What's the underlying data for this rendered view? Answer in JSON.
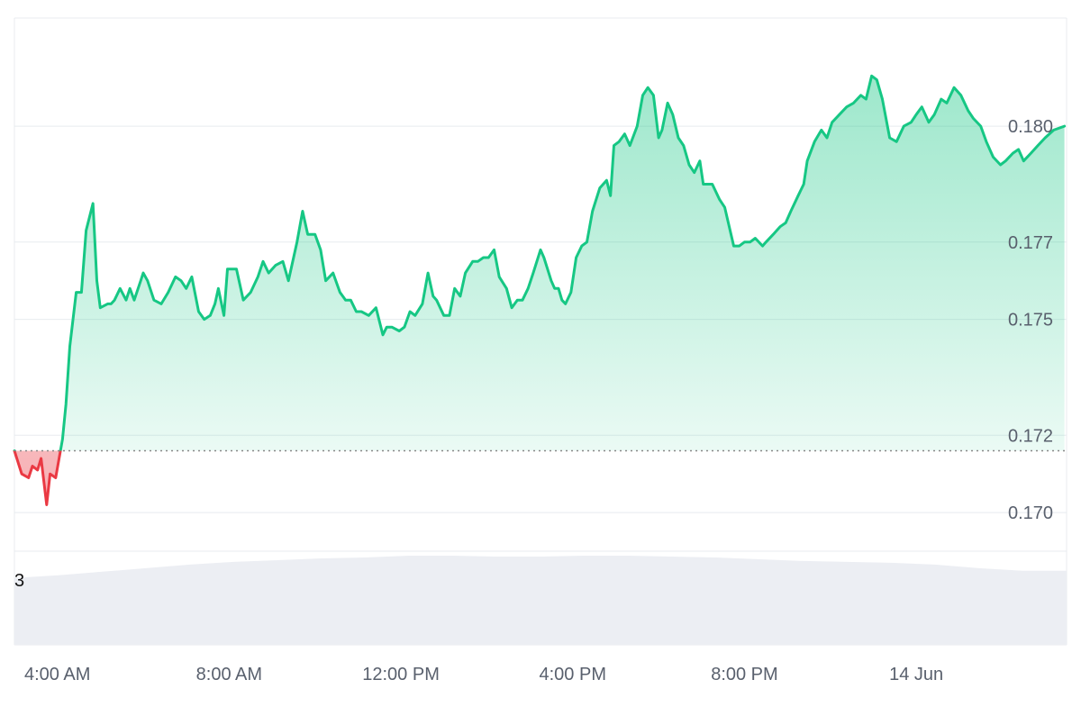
{
  "chart_data": {
    "type": "area",
    "xlabel": "",
    "ylabel": "",
    "ylim": [
      0.169,
      0.1828
    ],
    "yticks": [
      0.17,
      0.172,
      0.175,
      0.177,
      0.18
    ],
    "ytick_labels": [
      "0.170",
      "0.172",
      "0.175",
      "0.177",
      "0.180"
    ],
    "xticks": [
      "4:00 AM",
      "8:00 AM",
      "12:00 PM",
      "4:00 PM",
      "8:00 PM",
      "14 Jun"
    ],
    "x_tick_hours": [
      4,
      8,
      12,
      16,
      20,
      24
    ],
    "xlim_hours": [
      3.0,
      27.5
    ],
    "baseline": 0.1716,
    "colors": {
      "up": "#16c784",
      "down": "#ea3943",
      "grid": "#e8ebef",
      "volume": "#eceef3",
      "baseline": "#888888"
    },
    "grid": true,
    "legend": "none",
    "volume_label": "3",
    "volume_relative": [
      0.75,
      0.78,
      0.82,
      0.86,
      0.9,
      0.93,
      0.95,
      0.97,
      0.98,
      1.0,
      1.0,
      0.99,
      0.99,
      1.0,
      1.0,
      0.99,
      0.98,
      0.96,
      0.94,
      0.93,
      0.92,
      0.9,
      0.86,
      0.83,
      0.83
    ],
    "series": [
      {
        "values": [
          [
            3.0,
            0.1716
          ],
          [
            3.17,
            0.171
          ],
          [
            3.33,
            0.1709
          ],
          [
            3.42,
            0.1712
          ],
          [
            3.54,
            0.1711
          ],
          [
            3.62,
            0.1714
          ],
          [
            3.75,
            0.1702
          ],
          [
            3.83,
            0.171
          ],
          [
            3.96,
            0.1709
          ],
          [
            4.04,
            0.1714
          ],
          [
            4.12,
            0.1719
          ],
          [
            4.2,
            0.1728
          ],
          [
            4.29,
            0.1743
          ],
          [
            4.44,
            0.1757
          ],
          [
            4.56,
            0.1757
          ],
          [
            4.67,
            0.1773
          ],
          [
            4.83,
            0.178
          ],
          [
            4.92,
            0.176
          ],
          [
            5.0,
            0.1753
          ],
          [
            5.17,
            0.1754
          ],
          [
            5.25,
            0.1754
          ],
          [
            5.33,
            0.1755
          ],
          [
            5.46,
            0.1758
          ],
          [
            5.6,
            0.1755
          ],
          [
            5.69,
            0.1758
          ],
          [
            5.79,
            0.1755
          ],
          [
            5.94,
            0.176
          ],
          [
            6.0,
            0.1762
          ],
          [
            6.1,
            0.176
          ],
          [
            6.25,
            0.1755
          ],
          [
            6.42,
            0.1754
          ],
          [
            6.58,
            0.1757
          ],
          [
            6.75,
            0.1761
          ],
          [
            6.88,
            0.176
          ],
          [
            7.0,
            0.1758
          ],
          [
            7.13,
            0.1761
          ],
          [
            7.29,
            0.1752
          ],
          [
            7.42,
            0.175
          ],
          [
            7.56,
            0.1751
          ],
          [
            7.67,
            0.1754
          ],
          [
            7.75,
            0.1758
          ],
          [
            7.88,
            0.1751
          ],
          [
            7.96,
            0.1763
          ],
          [
            8.17,
            0.1763
          ],
          [
            8.33,
            0.1755
          ],
          [
            8.5,
            0.1757
          ],
          [
            8.67,
            0.1761
          ],
          [
            8.79,
            0.1765
          ],
          [
            8.92,
            0.1762
          ],
          [
            9.08,
            0.1764
          ],
          [
            9.25,
            0.1765
          ],
          [
            9.38,
            0.176
          ],
          [
            9.5,
            0.1766
          ],
          [
            9.58,
            0.177
          ],
          [
            9.71,
            0.1778
          ],
          [
            9.83,
            0.1772
          ],
          [
            10.0,
            0.1772
          ],
          [
            10.13,
            0.1768
          ],
          [
            10.25,
            0.176
          ],
          [
            10.42,
            0.1762
          ],
          [
            10.58,
            0.1757
          ],
          [
            10.71,
            0.1755
          ],
          [
            10.83,
            0.1755
          ],
          [
            10.96,
            0.1752
          ],
          [
            11.08,
            0.1752
          ],
          [
            11.25,
            0.1751
          ],
          [
            11.42,
            0.1753
          ],
          [
            11.58,
            0.1746
          ],
          [
            11.67,
            0.1748
          ],
          [
            11.79,
            0.1748
          ],
          [
            11.96,
            0.1747
          ],
          [
            12.08,
            0.1748
          ],
          [
            12.21,
            0.1752
          ],
          [
            12.33,
            0.1751
          ],
          [
            12.5,
            0.1754
          ],
          [
            12.63,
            0.1762
          ],
          [
            12.75,
            0.1756
          ],
          [
            12.83,
            0.1755
          ],
          [
            13.0,
            0.1751
          ],
          [
            13.13,
            0.1751
          ],
          [
            13.25,
            0.1758
          ],
          [
            13.38,
            0.1756
          ],
          [
            13.5,
            0.1762
          ],
          [
            13.67,
            0.1765
          ],
          [
            13.79,
            0.1765
          ],
          [
            13.92,
            0.1766
          ],
          [
            14.04,
            0.1766
          ],
          [
            14.17,
            0.1768
          ],
          [
            14.29,
            0.1761
          ],
          [
            14.46,
            0.1758
          ],
          [
            14.58,
            0.1753
          ],
          [
            14.71,
            0.1755
          ],
          [
            14.83,
            0.1755
          ],
          [
            14.96,
            0.1758
          ],
          [
            15.08,
            0.1762
          ],
          [
            15.25,
            0.1768
          ],
          [
            15.33,
            0.1766
          ],
          [
            15.5,
            0.176
          ],
          [
            15.58,
            0.1758
          ],
          [
            15.67,
            0.1758
          ],
          [
            15.75,
            0.1755
          ],
          [
            15.83,
            0.1754
          ],
          [
            15.96,
            0.1757
          ],
          [
            16.08,
            0.1766
          ],
          [
            16.21,
            0.1769
          ],
          [
            16.33,
            0.177
          ],
          [
            16.46,
            0.1778
          ],
          [
            16.63,
            0.1784
          ],
          [
            16.79,
            0.1786
          ],
          [
            16.88,
            0.1782
          ],
          [
            16.96,
            0.1795
          ],
          [
            17.08,
            0.1796
          ],
          [
            17.21,
            0.1798
          ],
          [
            17.33,
            0.1795
          ],
          [
            17.5,
            0.18
          ],
          [
            17.63,
            0.1808
          ],
          [
            17.75,
            0.181
          ],
          [
            17.88,
            0.1808
          ],
          [
            18.0,
            0.1797
          ],
          [
            18.08,
            0.1799
          ],
          [
            18.21,
            0.1806
          ],
          [
            18.33,
            0.1803
          ],
          [
            18.46,
            0.1797
          ],
          [
            18.58,
            0.1795
          ],
          [
            18.71,
            0.179
          ],
          [
            18.83,
            0.1788
          ],
          [
            18.96,
            0.1791
          ],
          [
            19.04,
            0.1785
          ],
          [
            19.25,
            0.1785
          ],
          [
            19.42,
            0.1781
          ],
          [
            19.54,
            0.1779
          ],
          [
            19.75,
            0.1769
          ],
          [
            19.88,
            0.1769
          ],
          [
            20.0,
            0.177
          ],
          [
            20.13,
            0.177
          ],
          [
            20.25,
            0.1771
          ],
          [
            20.42,
            0.1769
          ],
          [
            20.5,
            0.177
          ],
          [
            20.67,
            0.1772
          ],
          [
            20.83,
            0.1774
          ],
          [
            20.96,
            0.1775
          ],
          [
            21.08,
            0.1778
          ],
          [
            21.25,
            0.1782
          ],
          [
            21.38,
            0.1785
          ],
          [
            21.46,
            0.1791
          ],
          [
            21.63,
            0.1796
          ],
          [
            21.79,
            0.1799
          ],
          [
            21.92,
            0.1797
          ],
          [
            22.04,
            0.1801
          ],
          [
            22.21,
            0.1803
          ],
          [
            22.38,
            0.1805
          ],
          [
            22.54,
            0.1806
          ],
          [
            22.71,
            0.1808
          ],
          [
            22.83,
            0.1807
          ],
          [
            22.96,
            0.1813
          ],
          [
            23.08,
            0.1812
          ],
          [
            23.21,
            0.1807
          ],
          [
            23.38,
            0.1797
          ],
          [
            23.54,
            0.1796
          ],
          [
            23.71,
            0.18
          ],
          [
            23.88,
            0.1801
          ],
          [
            24.0,
            0.1803
          ],
          [
            24.13,
            0.1805
          ],
          [
            24.29,
            0.1801
          ],
          [
            24.42,
            0.1803
          ],
          [
            24.58,
            0.1807
          ],
          [
            24.71,
            0.1806
          ],
          [
            24.88,
            0.181
          ],
          [
            25.04,
            0.1808
          ],
          [
            25.21,
            0.1804
          ],
          [
            25.33,
            0.1802
          ],
          [
            25.5,
            0.18
          ],
          [
            25.63,
            0.1796
          ],
          [
            25.79,
            0.1792
          ],
          [
            25.96,
            0.179
          ],
          [
            26.08,
            0.1791
          ],
          [
            26.25,
            0.1793
          ],
          [
            26.38,
            0.1794
          ],
          [
            26.5,
            0.1791
          ],
          [
            26.67,
            0.1793
          ],
          [
            26.83,
            0.1795
          ],
          [
            27.0,
            0.1797
          ],
          [
            27.2,
            0.1799
          ],
          [
            27.45,
            0.18
          ]
        ]
      }
    ]
  }
}
